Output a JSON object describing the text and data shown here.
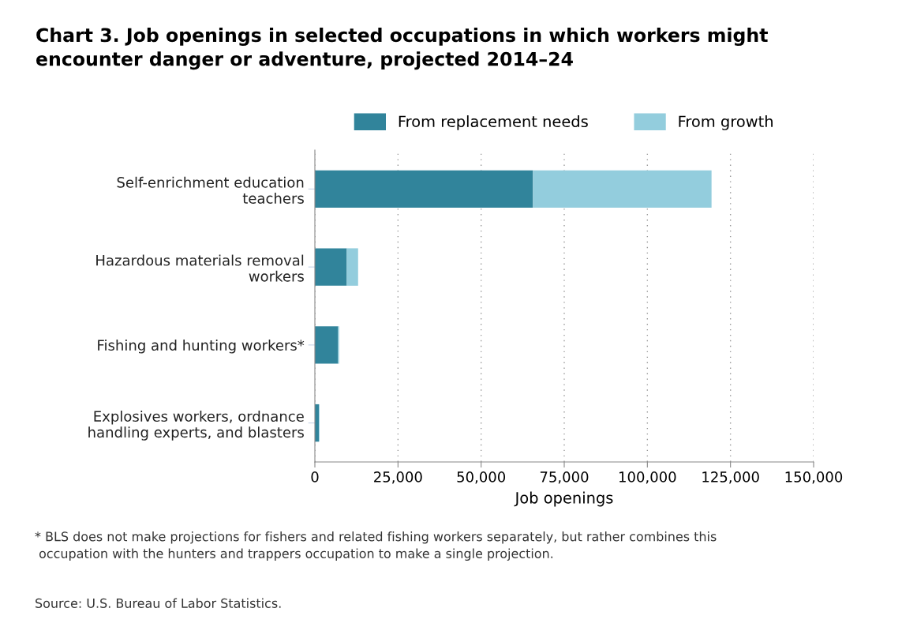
{
  "chart_data": {
    "type": "bar",
    "orientation": "horizontal",
    "stacked": true,
    "title": "Chart 3. Job openings in selected occupations in which workers might\nencounter danger or adventure, projected 2014–24",
    "xlabel": "Job openings",
    "categories": [
      "Self-enrichment education\nteachers",
      "Hazardous materials removal\nworkers",
      "Fishing and hunting workers*",
      "Explosives workers, ordnance\nhandling experts, and blasters"
    ],
    "series": [
      {
        "name": "From replacement needs",
        "color": "#31849b",
        "values": [
          65600,
          9600,
          7000,
          1200
        ]
      },
      {
        "name": "From growth",
        "color": "#93cddd",
        "values": [
          53700,
          3400,
          300,
          200
        ]
      }
    ],
    "xlim": [
      0,
      150000
    ],
    "xticks": [
      {
        "value": 0,
        "label": "0"
      },
      {
        "value": 25000,
        "label": "25,000"
      },
      {
        "value": 50000,
        "label": "50,000"
      },
      {
        "value": 75000,
        "label": "75,000"
      },
      {
        "value": 100000,
        "label": "100,000"
      },
      {
        "value": 125000,
        "label": "125,000"
      },
      {
        "value": 150000,
        "label": "150,000"
      }
    ],
    "grid": "x",
    "legend": "top",
    "annotations": [
      "* BLS does not make projections for fishers and related fishing workers separately, but rather combines this\n occupation with the hunters and trappers occupation to make a single projection.",
      "Source: U.S. Bureau of Labor Statistics."
    ]
  }
}
